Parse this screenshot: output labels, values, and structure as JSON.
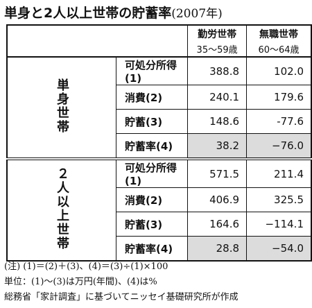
{
  "title": "単身と2人以上世帯の貯蓄率",
  "title_note": "(2007年)",
  "columns": [
    {
      "name": "勤労世帯",
      "sub": "35～59歳"
    },
    {
      "name": "無職世帯",
      "sub": "60～64歳"
    }
  ],
  "groups": [
    {
      "label": "単身世帯",
      "rows": [
        {
          "label": "可処分所得(1)",
          "values": [
            "388.8",
            "102.0"
          ]
        },
        {
          "label": "消費(2)",
          "values": [
            "240.1",
            "179.6"
          ]
        },
        {
          "label": "貯蓄(3)",
          "values": [
            "148.6",
            "-77.6"
          ]
        },
        {
          "label": "貯蓄率(4)",
          "values": [
            "38.2",
            "−76.0"
          ]
        }
      ]
    },
    {
      "label": "２人以上世帯",
      "rows": [
        {
          "label": "可処分所得(1)",
          "values": [
            "571.5",
            "211.4"
          ]
        },
        {
          "label": "消費(2)",
          "values": [
            "406.9",
            "325.5"
          ]
        },
        {
          "label": "貯蓄(3)",
          "values": [
            "164.6",
            "−114.1"
          ]
        },
        {
          "label": "貯蓄率(4)",
          "values": [
            "28.8",
            "−54.0"
          ]
        }
      ]
    }
  ],
  "notes": [
    "(注) (1)＝(2)＋(3)、(4)＝(3)÷(1)×100",
    "単位：(1)～(3)は万円(年間)、(4)は%",
    "総務省「家計調査」に基づいてニッセイ基礎研究所が作成"
  ]
}
